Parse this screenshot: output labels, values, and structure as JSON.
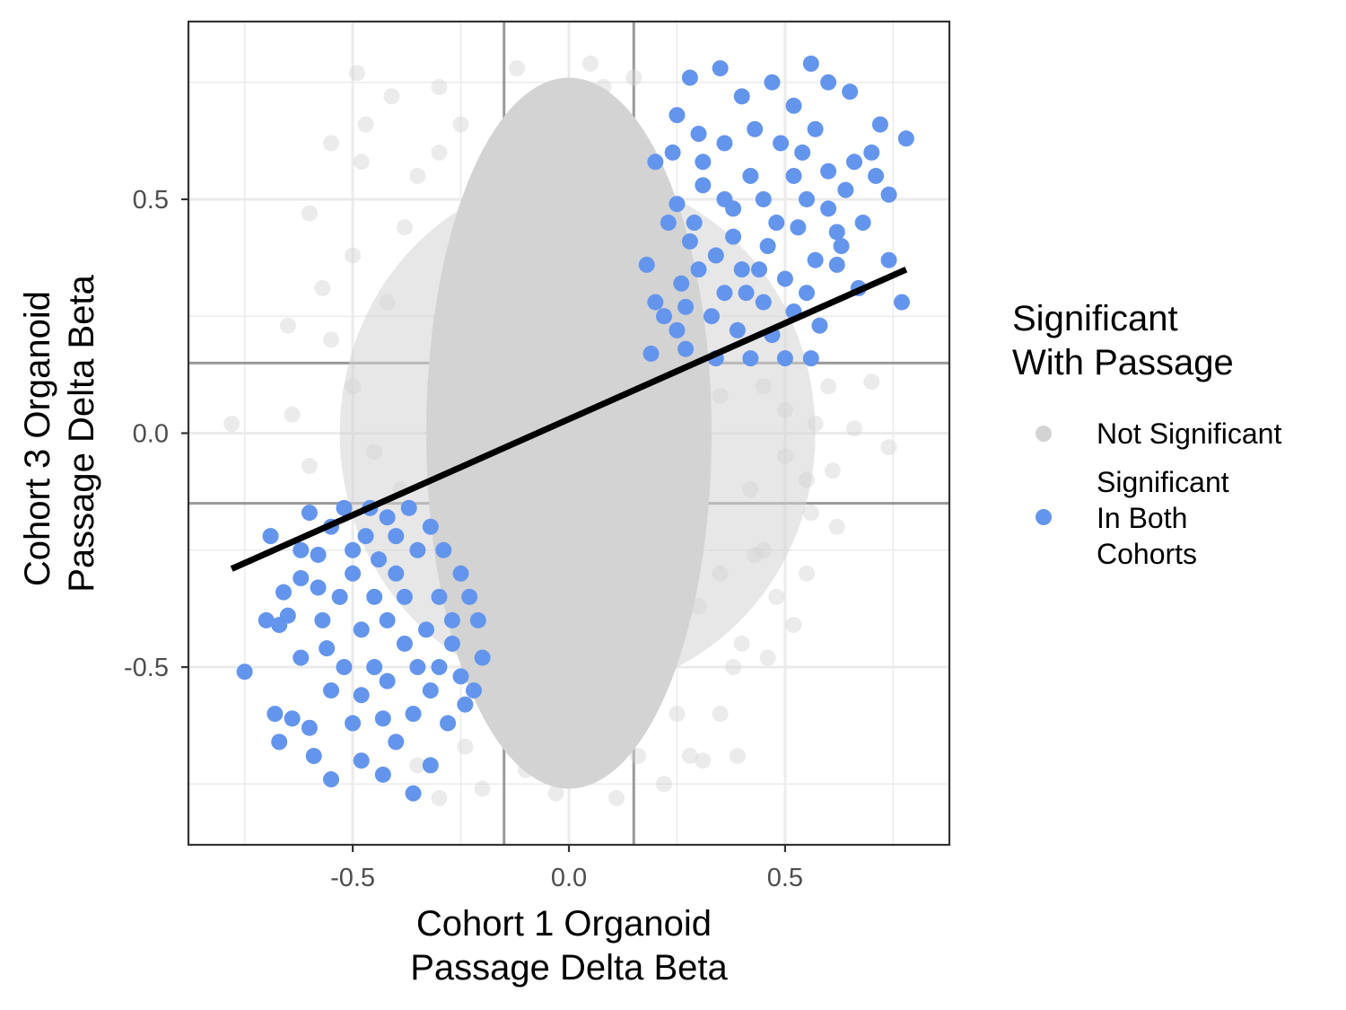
{
  "chart_data": {
    "type": "scatter",
    "xlabel": [
      "Cohort 1 Organoid",
      "Passage Delta Beta"
    ],
    "ylabel": [
      "Cohort 3 Organoid",
      "Passage Delta Beta"
    ],
    "xlim": [
      -0.88,
      0.88
    ],
    "ylim": [
      -0.88,
      0.88
    ],
    "x_ticks": [
      {
        "value": -0.5,
        "label": "-0.5"
      },
      {
        "value": 0.0,
        "label": "0.0"
      },
      {
        "value": 0.5,
        "label": "0.5"
      }
    ],
    "y_ticks": [
      {
        "value": 0.5,
        "label": "0.5"
      },
      {
        "value": 0.0,
        "label": "0.0"
      },
      {
        "value": -0.5,
        "label": "-0.5"
      }
    ],
    "grid": true,
    "threshold_lines": {
      "x": [
        -0.15,
        0.15
      ],
      "y": [
        -0.15,
        0.15
      ]
    },
    "regression_line": {
      "x": [
        -0.78,
        0.78
      ],
      "y": [
        -0.29,
        0.35
      ]
    },
    "legend": {
      "title": [
        "Significant",
        "With Passage"
      ],
      "position": "right",
      "entries": [
        {
          "label": [
            "Not Significant"
          ],
          "color": "#d3d3d3"
        },
        {
          "label": [
            "Significant",
            "In Both",
            "Cohorts"
          ],
          "color": "#6495ed"
        }
      ]
    },
    "series": [
      {
        "name": "Not Significant",
        "color": "#d3d3d3",
        "opacity": 0.45,
        "points": [
          [
            -0.12,
            0.78
          ],
          [
            0.05,
            0.79
          ],
          [
            0.15,
            0.76
          ],
          [
            -0.3,
            0.74
          ],
          [
            -0.49,
            0.77
          ],
          [
            -0.55,
            0.62
          ],
          [
            -0.48,
            0.58
          ],
          [
            -0.6,
            0.47
          ],
          [
            -0.57,
            0.31
          ],
          [
            -0.65,
            0.23
          ],
          [
            -0.78,
            0.02
          ],
          [
            -0.64,
            0.04
          ],
          [
            -0.6,
            -0.07
          ],
          [
            0.57,
            0.02
          ],
          [
            0.66,
            0.01
          ],
          [
            0.7,
            0.11
          ],
          [
            0.74,
            -0.03
          ],
          [
            0.61,
            -0.08
          ],
          [
            0.56,
            -0.17
          ],
          [
            0.55,
            -0.3
          ],
          [
            0.48,
            -0.35
          ],
          [
            0.52,
            -0.41
          ],
          [
            0.4,
            -0.45
          ],
          [
            0.38,
            -0.5
          ],
          [
            0.35,
            -0.6
          ],
          [
            0.39,
            -0.69
          ],
          [
            0.31,
            -0.7
          ],
          [
            0.22,
            -0.75
          ],
          [
            0.28,
            -0.69
          ],
          [
            0.11,
            -0.78
          ],
          [
            -0.03,
            -0.77
          ],
          [
            -0.1,
            -0.72
          ],
          [
            -0.3,
            -0.78
          ],
          [
            -0.35,
            -0.71
          ],
          [
            -0.24,
            -0.67
          ],
          [
            -0.17,
            -0.58
          ],
          [
            -0.39,
            -0.12
          ],
          [
            -0.45,
            -0.04
          ],
          [
            -0.5,
            0.1
          ],
          [
            -0.42,
            0.28
          ],
          [
            -0.38,
            0.44
          ],
          [
            0.45,
            0.1
          ],
          [
            0.5,
            0.05
          ],
          [
            0.42,
            -0.12
          ],
          [
            0.43,
            -0.26
          ],
          [
            0.3,
            -0.37
          ],
          [
            0.26,
            0.12
          ],
          [
            0.2,
            0.18
          ],
          [
            0.55,
            -0.1
          ],
          [
            0.62,
            -0.2
          ],
          [
            -0.47,
            0.66
          ],
          [
            -0.41,
            0.72
          ],
          [
            0.08,
            0.74
          ],
          [
            -0.05,
            0.71
          ],
          [
            -0.3,
            0.6
          ],
          [
            -0.25,
            0.66
          ],
          [
            0.1,
            0.66
          ],
          [
            0.25,
            -0.6
          ],
          [
            0.16,
            -0.69
          ],
          [
            -0.06,
            -0.69
          ],
          [
            -0.2,
            -0.76
          ],
          [
            0.35,
            -0.3
          ],
          [
            0.45,
            -0.25
          ],
          [
            0.6,
            0.1
          ],
          [
            -0.55,
            0.2
          ],
          [
            -0.5,
            0.38
          ],
          [
            -0.35,
            0.55
          ],
          [
            0.35,
            0.08
          ],
          [
            0.5,
            -0.05
          ],
          [
            0.46,
            -0.48
          ]
        ]
      },
      {
        "name": "Significant In Both Cohorts",
        "color": "#6495ed",
        "opacity": 1,
        "points": [
          [
            0.28,
            0.76
          ],
          [
            0.35,
            0.78
          ],
          [
            0.47,
            0.75
          ],
          [
            0.56,
            0.79
          ],
          [
            0.6,
            0.75
          ],
          [
            0.65,
            0.73
          ],
          [
            0.78,
            0.63
          ],
          [
            0.72,
            0.66
          ],
          [
            0.74,
            0.51
          ],
          [
            0.71,
            0.55
          ],
          [
            0.66,
            0.58
          ],
          [
            0.62,
            0.43
          ],
          [
            0.63,
            0.4
          ],
          [
            0.74,
            0.37
          ],
          [
            0.77,
            0.28
          ],
          [
            0.67,
            0.31
          ],
          [
            0.7,
            0.6
          ],
          [
            0.6,
            0.56
          ],
          [
            0.52,
            0.55
          ],
          [
            0.45,
            0.5
          ],
          [
            0.38,
            0.48
          ],
          [
            0.31,
            0.53
          ],
          [
            0.25,
            0.49
          ],
          [
            0.2,
            0.58
          ],
          [
            0.23,
            0.45
          ],
          [
            0.28,
            0.41
          ],
          [
            0.18,
            0.36
          ],
          [
            0.2,
            0.28
          ],
          [
            0.25,
            0.22
          ],
          [
            0.27,
            0.18
          ],
          [
            0.19,
            0.17
          ],
          [
            0.34,
            0.16
          ],
          [
            0.42,
            0.16
          ],
          [
            0.5,
            0.16
          ],
          [
            0.56,
            0.16
          ],
          [
            0.58,
            0.23
          ],
          [
            0.55,
            0.3
          ],
          [
            0.5,
            0.33
          ],
          [
            0.45,
            0.28
          ],
          [
            0.4,
            0.35
          ],
          [
            0.36,
            0.3
          ],
          [
            0.33,
            0.25
          ],
          [
            0.3,
            0.35
          ],
          [
            0.38,
            0.42
          ],
          [
            0.46,
            0.4
          ],
          [
            0.53,
            0.44
          ],
          [
            0.57,
            0.37
          ],
          [
            0.49,
            0.62
          ],
          [
            0.43,
            0.65
          ],
          [
            0.36,
            0.62
          ],
          [
            0.3,
            0.64
          ],
          [
            0.25,
            0.68
          ],
          [
            0.4,
            0.72
          ],
          [
            0.52,
            0.7
          ],
          [
            0.57,
            0.65
          ],
          [
            0.6,
            0.48
          ],
          [
            0.42,
            0.55
          ],
          [
            0.34,
            0.38
          ],
          [
            0.26,
            0.32
          ],
          [
            0.22,
            0.25
          ],
          [
            0.39,
            0.22
          ],
          [
            0.47,
            0.21
          ],
          [
            0.52,
            0.26
          ],
          [
            0.44,
            0.35
          ],
          [
            0.36,
            0.5
          ],
          [
            0.29,
            0.45
          ],
          [
            0.55,
            0.5
          ],
          [
            0.64,
            0.52
          ],
          [
            0.68,
            0.45
          ],
          [
            0.48,
            0.45
          ],
          [
            0.31,
            0.58
          ],
          [
            0.27,
            0.27
          ],
          [
            0.41,
            0.3
          ],
          [
            0.62,
            0.36
          ],
          [
            0.54,
            0.6
          ],
          [
            0.24,
            0.6
          ],
          [
            -0.75,
            -0.51
          ],
          [
            -0.68,
            -0.6
          ],
          [
            -0.67,
            -0.66
          ],
          [
            -0.64,
            -0.61
          ],
          [
            -0.6,
            -0.63
          ],
          [
            -0.59,
            -0.69
          ],
          [
            -0.55,
            -0.74
          ],
          [
            -0.48,
            -0.7
          ],
          [
            -0.43,
            -0.73
          ],
          [
            -0.36,
            -0.77
          ],
          [
            -0.32,
            -0.71
          ],
          [
            -0.4,
            -0.66
          ],
          [
            -0.43,
            -0.61
          ],
          [
            -0.48,
            -0.56
          ],
          [
            -0.52,
            -0.5
          ],
          [
            -0.56,
            -0.46
          ],
          [
            -0.62,
            -0.48
          ],
          [
            -0.65,
            -0.39
          ],
          [
            -0.67,
            -0.41
          ],
          [
            -0.66,
            -0.34
          ],
          [
            -0.62,
            -0.31
          ],
          [
            -0.58,
            -0.26
          ],
          [
            -0.55,
            -0.2
          ],
          [
            -0.6,
            -0.17
          ],
          [
            -0.52,
            -0.16
          ],
          [
            -0.46,
            -0.16
          ],
          [
            -0.42,
            -0.18
          ],
          [
            -0.37,
            -0.16
          ],
          [
            -0.32,
            -0.2
          ],
          [
            -0.29,
            -0.25
          ],
          [
            -0.25,
            -0.3
          ],
          [
            -0.23,
            -0.35
          ],
          [
            -0.21,
            -0.4
          ],
          [
            -0.2,
            -0.48
          ],
          [
            -0.22,
            -0.55
          ],
          [
            -0.24,
            -0.58
          ],
          [
            -0.28,
            -0.62
          ],
          [
            -0.32,
            -0.55
          ],
          [
            -0.35,
            -0.5
          ],
          [
            -0.38,
            -0.45
          ],
          [
            -0.42,
            -0.4
          ],
          [
            -0.45,
            -0.35
          ],
          [
            -0.5,
            -0.3
          ],
          [
            -0.53,
            -0.35
          ],
          [
            -0.57,
            -0.4
          ],
          [
            -0.48,
            -0.42
          ],
          [
            -0.4,
            -0.3
          ],
          [
            -0.35,
            -0.25
          ],
          [
            -0.3,
            -0.35
          ],
          [
            -0.27,
            -0.45
          ],
          [
            -0.3,
            -0.5
          ],
          [
            -0.45,
            -0.5
          ],
          [
            -0.5,
            -0.25
          ],
          [
            -0.44,
            -0.27
          ],
          [
            -0.38,
            -0.35
          ],
          [
            -0.33,
            -0.42
          ],
          [
            -0.36,
            -0.6
          ],
          [
            -0.25,
            -0.52
          ],
          [
            -0.62,
            -0.25
          ],
          [
            -0.69,
            -0.22
          ],
          [
            -0.7,
            -0.4
          ],
          [
            -0.55,
            -0.55
          ],
          [
            -0.5,
            -0.62
          ],
          [
            -0.42,
            -0.53
          ],
          [
            -0.27,
            -0.4
          ],
          [
            -0.58,
            -0.33
          ],
          [
            -0.47,
            -0.22
          ],
          [
            -0.4,
            -0.22
          ]
        ]
      }
    ]
  }
}
